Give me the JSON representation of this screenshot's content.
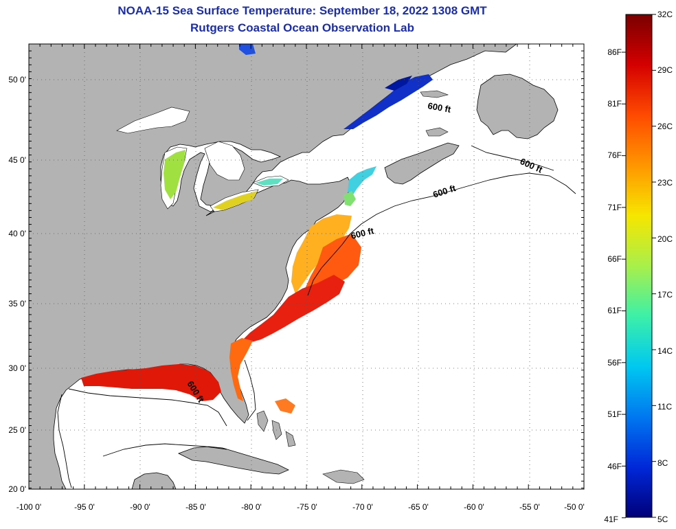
{
  "title": {
    "line1": "NOAA-15 Sea Surface Temperature:  September 18, 2022 1308 GMT",
    "line2": "Rutgers Coastal Ocean Observation Lab"
  },
  "map": {
    "lon_ticks": [
      "-100 0'",
      "-95 0'",
      "-90 0'",
      "-85 0'",
      "-80 0'",
      "-75 0'",
      "-70 0'",
      "-65 0'",
      "-60 0'",
      "-55 0'",
      "-50 0'"
    ],
    "lat_ticks": [
      "50 0'",
      "45 0'",
      "40 0'",
      "35 0'",
      "30 0'",
      "25 0'",
      "20 0'"
    ],
    "contour_label": "600 ft",
    "land_color": "#b3b3b3",
    "ocean_no_data_color": "#ffffff",
    "grid": "dotted"
  },
  "colorbar": {
    "celsius_labels": [
      "32C",
      "29C",
      "26C",
      "23C",
      "20C",
      "17C",
      "14C",
      "11C",
      "8C",
      "5C"
    ],
    "fahrenheit_labels": [
      "86F",
      "81F",
      "76F",
      "71F",
      "66F",
      "61F",
      "56F",
      "51F",
      "46F",
      "41F"
    ],
    "stops": [
      "#7a0000",
      "#d40000",
      "#ff4a00",
      "#ff9600",
      "#f6e600",
      "#a8f04a",
      "#3cf0a8",
      "#00c8f0",
      "#0078f0",
      "#0028d8",
      "#000078"
    ]
  }
}
